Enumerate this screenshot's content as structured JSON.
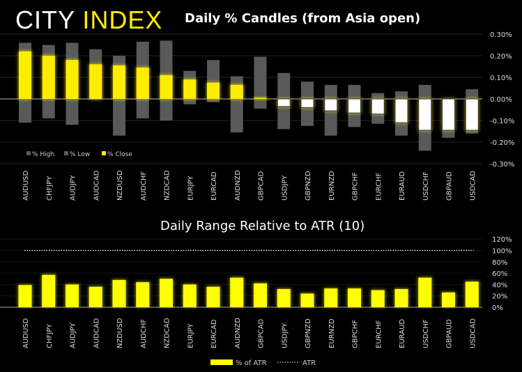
{
  "logo": {
    "part1": "CITY",
    "part2": "INDEX"
  },
  "chart_data": [
    {
      "type": "bar",
      "title": "Daily % Candles (from Asia open)",
      "categories": [
        "AUDUSD",
        "CHFJPY",
        "AUDJPY",
        "AUDCAD",
        "NZDUSD",
        "AUDCHF",
        "NZDCAD",
        "EURJPY",
        "EURCAD",
        "AUDNZD",
        "GBPCAD",
        "USDJPY",
        "GBPNZD",
        "EURNZD",
        "GBPCHF",
        "EURCHF",
        "EURAUD",
        "USDCHF",
        "GBPAUD",
        "USDCAD"
      ],
      "series": [
        {
          "name": "% High",
          "color": "#595959",
          "values": [
            0.26,
            0.25,
            0.26,
            0.23,
            0.2,
            0.265,
            0.27,
            0.13,
            0.18,
            0.105,
            0.195,
            0.12,
            0.08,
            0.065,
            0.065,
            0.027,
            0.035,
            0.065,
            0.0,
            0.045
          ]
        },
        {
          "name": "% Low",
          "color": "#595959",
          "values": [
            -0.11,
            -0.09,
            -0.12,
            0.0,
            -0.17,
            -0.09,
            -0.1,
            -0.025,
            -0.015,
            -0.155,
            -0.045,
            -0.14,
            -0.125,
            -0.17,
            -0.13,
            -0.115,
            -0.17,
            -0.24,
            -0.18,
            -0.16
          ]
        },
        {
          "name": "% Close",
          "color": "#ffed00",
          "values": [
            0.22,
            0.2,
            0.18,
            0.16,
            0.155,
            0.145,
            0.11,
            0.09,
            0.075,
            0.065,
            0.005,
            -0.035,
            -0.04,
            -0.055,
            -0.065,
            -0.07,
            -0.11,
            -0.145,
            -0.145,
            -0.145
          ]
        }
      ],
      "yticks": [
        "0.30%",
        "0.20%",
        "0.10%",
        "0.00%",
        "-0.10%",
        "-0.20%",
        "-0.30%"
      ],
      "ylim": [
        -0.3,
        0.3
      ],
      "legend": "bottom-left"
    },
    {
      "type": "bar",
      "title": "Daily Range Relative to ATR (10)",
      "categories": [
        "AUDUSD",
        "CHFJPY",
        "AUDJPY",
        "AUDCAD",
        "NZDUSD",
        "AUDCHF",
        "NZDCAD",
        "EURJPY",
        "EURCAD",
        "AUDNZD",
        "GBPCAD",
        "USDJPY",
        "GBPNZD",
        "EURNZD",
        "GBPCHF",
        "EURCHF",
        "EURAUD",
        "USDCHF",
        "GBPAUD",
        "USDCAD"
      ],
      "series": [
        {
          "name": "% of ATR",
          "color": "#ffff00",
          "values": [
            39,
            57,
            40,
            36,
            48,
            44,
            50,
            40,
            36,
            52,
            42,
            32,
            24,
            33,
            33,
            30,
            32,
            52,
            26,
            45
          ]
        },
        {
          "name": "ATR",
          "value": 100
        }
      ],
      "yticks": [
        "120%",
        "100%",
        "80%",
        "60%",
        "40%",
        "20%",
        "0%"
      ],
      "ylim": [
        0,
        120
      ],
      "legend": "bottom"
    }
  ]
}
